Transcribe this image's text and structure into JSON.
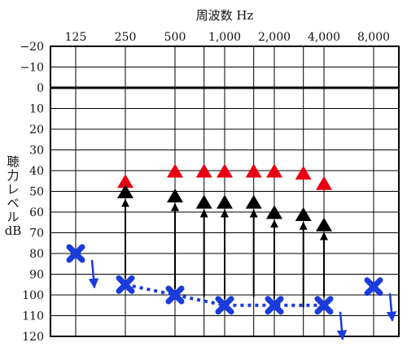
{
  "chart_data": {
    "type": "scatter",
    "title": "周波数 Hz",
    "ylabel_lines": [
      "聴",
      "力",
      "レ",
      "ベ",
      "ル",
      "dB"
    ],
    "x_ticks": [
      {
        "label": "125",
        "freq": 125
      },
      {
        "label": "250",
        "freq": 250
      },
      {
        "label": "500",
        "freq": 500
      },
      {
        "label": "1,000",
        "freq": 1000
      },
      {
        "label": "2,000",
        "freq": 2000
      },
      {
        "label": "4,000",
        "freq": 4000
      },
      {
        "label": "8,000",
        "freq": 8000
      }
    ],
    "x_extra_gridlines": [
      750,
      1500,
      3000
    ],
    "x_scale": "log",
    "y_ticks": [
      "−20",
      "−10",
      "0",
      "10",
      "20",
      "30",
      "40",
      "50",
      "60",
      "70",
      "80",
      "90",
      "100",
      "110",
      "120"
    ],
    "ylim": [
      -20,
      120
    ],
    "y_inverted": true,
    "zero_line": 0,
    "grid": true,
    "series": [
      {
        "marker": "triangle",
        "color": "#e60012",
        "points": [
          {
            "x": 250,
            "y": 45
          },
          {
            "x": 500,
            "y": 40
          },
          {
            "x": 750,
            "y": 40
          },
          {
            "x": 1000,
            "y": 40
          },
          {
            "x": 1500,
            "y": 40
          },
          {
            "x": 2000,
            "y": 40
          },
          {
            "x": 3000,
            "y": 41
          },
          {
            "x": 4000,
            "y": 46
          }
        ]
      },
      {
        "marker": "triangle",
        "color": "#000000",
        "points": [
          {
            "x": 250,
            "y": 50
          },
          {
            "x": 500,
            "y": 52
          },
          {
            "x": 750,
            "y": 55
          },
          {
            "x": 1000,
            "y": 55
          },
          {
            "x": 1500,
            "y": 55
          },
          {
            "x": 2000,
            "y": 60
          },
          {
            "x": 3000,
            "y": 61
          },
          {
            "x": 4000,
            "y": 66
          }
        ]
      },
      {
        "marker": "cross",
        "color": "#1a3cdc",
        "connected": [
          250,
          500,
          1000,
          2000,
          4000
        ],
        "points": [
          {
            "x": 125,
            "y": 80,
            "scale_out": true
          },
          {
            "x": 250,
            "y": 95
          },
          {
            "x": 500,
            "y": 100
          },
          {
            "x": 1000,
            "y": 105
          },
          {
            "x": 2000,
            "y": 105
          },
          {
            "x": 4000,
            "y": 105,
            "scale_out": true
          },
          {
            "x": 8000,
            "y": 96,
            "scale_out": true
          }
        ]
      }
    ],
    "arrows": [
      {
        "x": 250,
        "from": 92,
        "to": 54
      },
      {
        "x": 500,
        "from": 97,
        "to": 56
      },
      {
        "x": 750,
        "from": 101,
        "to": 59
      },
      {
        "x": 1000,
        "from": 102,
        "to": 59
      },
      {
        "x": 1500,
        "from": 101,
        "to": 59
      },
      {
        "x": 2000,
        "from": 102,
        "to": 64
      },
      {
        "x": 3000,
        "from": 106,
        "to": 65
      },
      {
        "x": 4000,
        "from": 101,
        "to": 70
      }
    ]
  }
}
